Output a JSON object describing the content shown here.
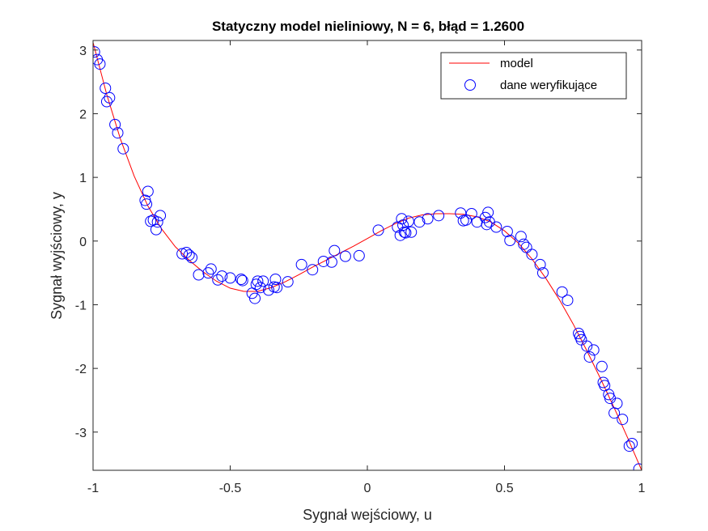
{
  "chart_data": {
    "type": "scatter",
    "title": "Statyczny model nieliniowy, N = 6, błąd = 1.2600",
    "xlabel": "Sygnał wejściowy, u",
    "ylabel": "Sygnał wyjściowy, y",
    "xlim": [
      -1,
      1
    ],
    "ylim": [
      -3.6,
      3.15
    ],
    "xticks": [
      -1,
      -0.5,
      0,
      0.5,
      1
    ],
    "xtick_labels": [
      "-1",
      "-0.5",
      "0",
      "0.5",
      "1"
    ],
    "yticks": [
      -3,
      -2,
      -1,
      0,
      1,
      2,
      3
    ],
    "ytick_labels": [
      "-3",
      "-2",
      "-1",
      "0",
      "1",
      "2",
      "3"
    ],
    "grid": false,
    "legend_position": "top-right",
    "series": [
      {
        "name": "model",
        "kind": "line",
        "color": "#ff0000",
        "x": [
          -1.0,
          -0.95,
          -0.9,
          -0.85,
          -0.8,
          -0.75,
          -0.7,
          -0.65,
          -0.6,
          -0.55,
          -0.5,
          -0.45,
          -0.4,
          -0.35,
          -0.3,
          -0.25,
          -0.2,
          -0.15,
          -0.1,
          -0.05,
          0.0,
          0.05,
          0.1,
          0.15,
          0.2,
          0.25,
          0.3,
          0.35,
          0.4,
          0.45,
          0.5,
          0.55,
          0.6,
          0.65,
          0.7,
          0.75,
          0.8,
          0.85,
          0.9,
          0.95,
          1.0
        ],
        "y": [
          3.12,
          2.3,
          1.6,
          1.02,
          0.55,
          0.19,
          -0.09,
          -0.3,
          -0.48,
          -0.63,
          -0.74,
          -0.79,
          -0.79,
          -0.73,
          -0.64,
          -0.53,
          -0.41,
          -0.3,
          -0.19,
          -0.08,
          0.04,
          0.16,
          0.27,
          0.36,
          0.41,
          0.43,
          0.43,
          0.42,
          0.38,
          0.3,
          0.16,
          -0.03,
          -0.28,
          -0.58,
          -0.92,
          -1.3,
          -1.72,
          -2.16,
          -2.62,
          -3.1,
          -3.6
        ]
      },
      {
        "name": "dane weryfikujące",
        "kind": "markers",
        "color": "#0000ff",
        "x": [
          -0.995,
          -0.985,
          -0.975,
          -0.955,
          -0.95,
          -0.94,
          -0.92,
          -0.91,
          -0.89,
          -0.81,
          -0.805,
          -0.8,
          -0.79,
          -0.78,
          -0.77,
          -0.765,
          -0.755,
          -0.675,
          -0.66,
          -0.65,
          -0.64,
          -0.615,
          -0.58,
          -0.57,
          -0.545,
          -0.53,
          -0.5,
          -0.46,
          -0.455,
          -0.42,
          -0.41,
          -0.405,
          -0.4,
          -0.39,
          -0.38,
          -0.36,
          -0.34,
          -0.335,
          -0.33,
          -0.29,
          -0.24,
          -0.2,
          -0.16,
          -0.13,
          -0.12,
          -0.08,
          -0.03,
          0.04,
          0.11,
          0.12,
          0.125,
          0.13,
          0.135,
          0.14,
          0.15,
          0.16,
          0.19,
          0.22,
          0.26,
          0.34,
          0.35,
          0.36,
          0.38,
          0.4,
          0.43,
          0.435,
          0.44,
          0.445,
          0.47,
          0.51,
          0.52,
          0.56,
          0.57,
          0.58,
          0.6,
          0.63,
          0.64,
          0.71,
          0.73,
          0.77,
          0.775,
          0.78,
          0.8,
          0.81,
          0.825,
          0.855,
          0.86,
          0.865,
          0.88,
          0.885,
          0.9,
          0.91,
          0.93,
          0.955,
          0.965,
          0.99
        ],
        "y": [
          2.97,
          2.85,
          2.78,
          2.4,
          2.19,
          2.25,
          1.83,
          1.7,
          1.45,
          0.64,
          0.58,
          0.78,
          0.31,
          0.33,
          0.18,
          0.3,
          0.4,
          -0.2,
          -0.18,
          -0.22,
          -0.26,
          -0.53,
          -0.5,
          -0.44,
          -0.61,
          -0.55,
          -0.58,
          -0.6,
          -0.62,
          -0.82,
          -0.9,
          -0.68,
          -0.63,
          -0.73,
          -0.63,
          -0.77,
          -0.72,
          -0.6,
          -0.73,
          -0.64,
          -0.37,
          -0.45,
          -0.32,
          -0.33,
          -0.15,
          -0.24,
          -0.23,
          0.17,
          0.22,
          0.09,
          0.35,
          0.25,
          0.14,
          0.13,
          0.31,
          0.14,
          0.3,
          0.35,
          0.4,
          0.44,
          0.32,
          0.33,
          0.43,
          0.3,
          0.37,
          0.26,
          0.45,
          0.3,
          0.22,
          0.15,
          0.01,
          0.07,
          -0.05,
          -0.1,
          -0.21,
          -0.37,
          -0.5,
          -0.8,
          -0.93,
          -1.45,
          -1.5,
          -1.55,
          -1.65,
          -1.82,
          -1.71,
          -1.97,
          -2.22,
          -2.27,
          -2.41,
          -2.47,
          -2.7,
          -2.55,
          -2.8,
          -3.22,
          -3.18,
          -3.58
        ]
      }
    ]
  }
}
